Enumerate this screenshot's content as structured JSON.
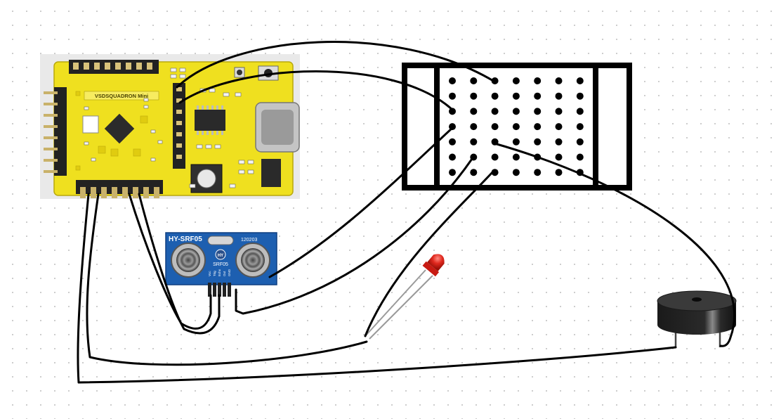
{
  "board": {
    "name": "VSDSQUADRON Mini"
  },
  "sensor": {
    "model": "HY-SRF05",
    "model_short": "SRF05",
    "code": "120203",
    "logo": "HY",
    "pin_labels": [
      "Vcc",
      "Trig",
      "Echo",
      "Out",
      "GND"
    ]
  },
  "breadboard": {
    "rows": 7,
    "cols": 7
  },
  "colors": {
    "board_yellow": "#f0e02a",
    "sensor_blue": "#1d5fb0",
    "led_red": "#e0281e",
    "wire": "#000000"
  },
  "components": [
    "microcontroller-board",
    "ultrasonic-sensor",
    "breadboard",
    "led",
    "buzzer"
  ]
}
